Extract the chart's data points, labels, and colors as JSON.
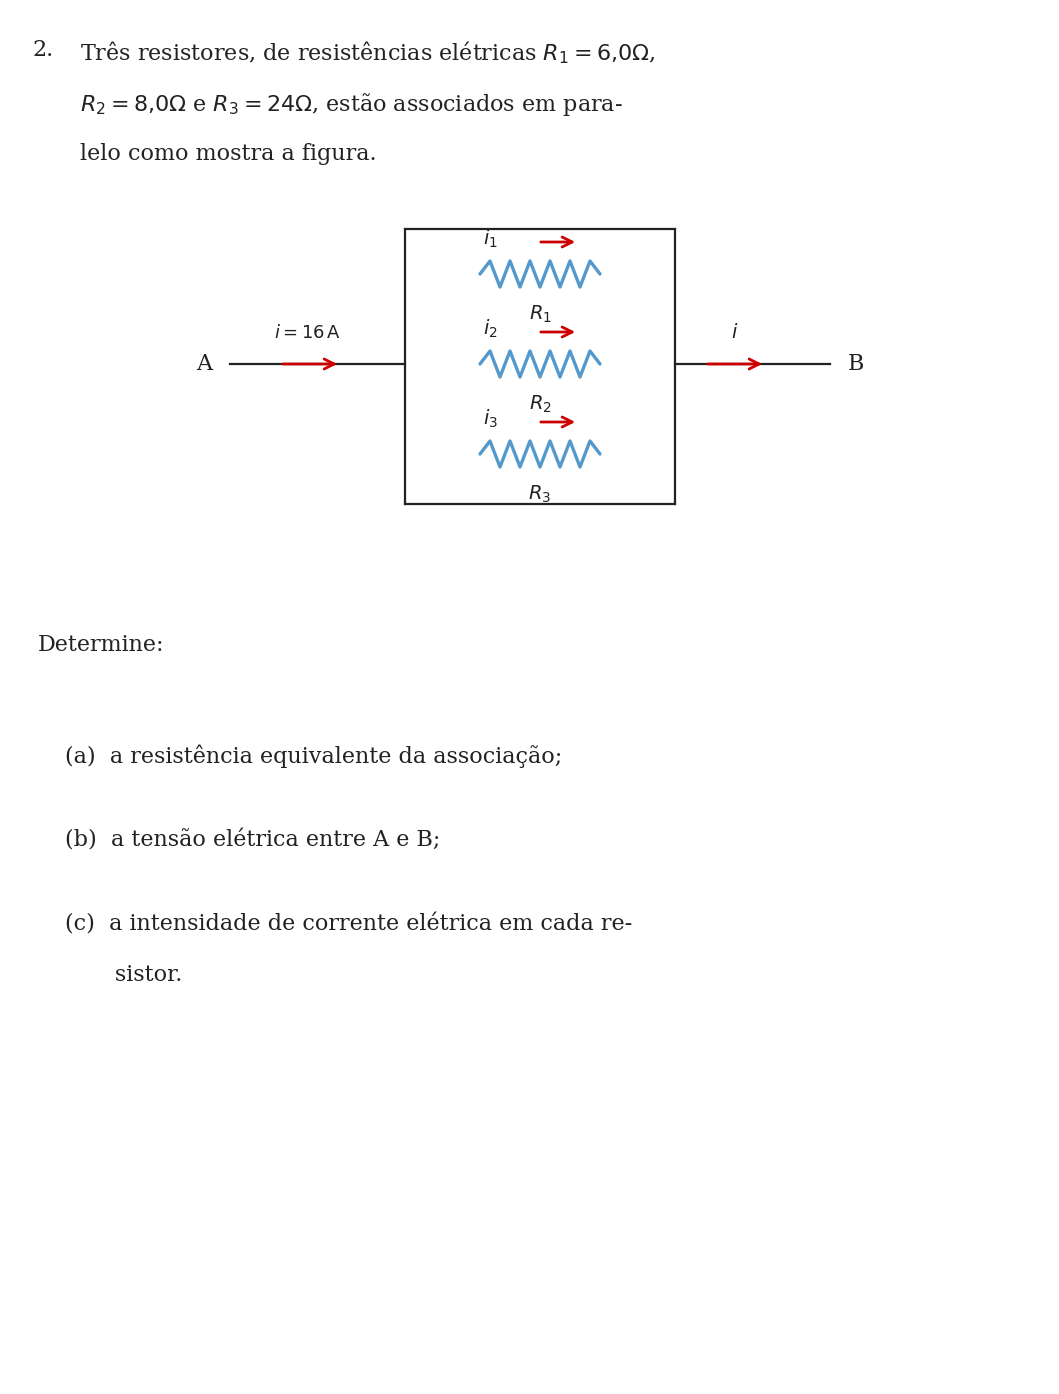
{
  "bg_color": "#ffffff",
  "dark_color": "#222222",
  "red_color": "#cc0000",
  "blue_color": "#5599cc",
  "font_size_main": 16,
  "font_size_circuit": 14,
  "fig_width": 10.59,
  "fig_height": 13.94,
  "dpi": 100,
  "line1_num": "2.",
  "line1_text": "Três resistores, de resistências elétricas $R_1 = 6{,}0\\Omega$,",
  "line2_text": "$R_2 = 8{,}0\\Omega$ e $R_3 = 24\\Omega$, estão associados em para-",
  "line3_text": "lelo como mostra a figura.",
  "determine_text": "Determine:",
  "item_a": "(a)  a resistência equivalente da associação;",
  "item_b": "(b)  a tensão elétrica entre A e B;",
  "item_c1": "(c)  a intensidade de corrente elétrica em cada re-",
  "item_c2": "       sistor."
}
